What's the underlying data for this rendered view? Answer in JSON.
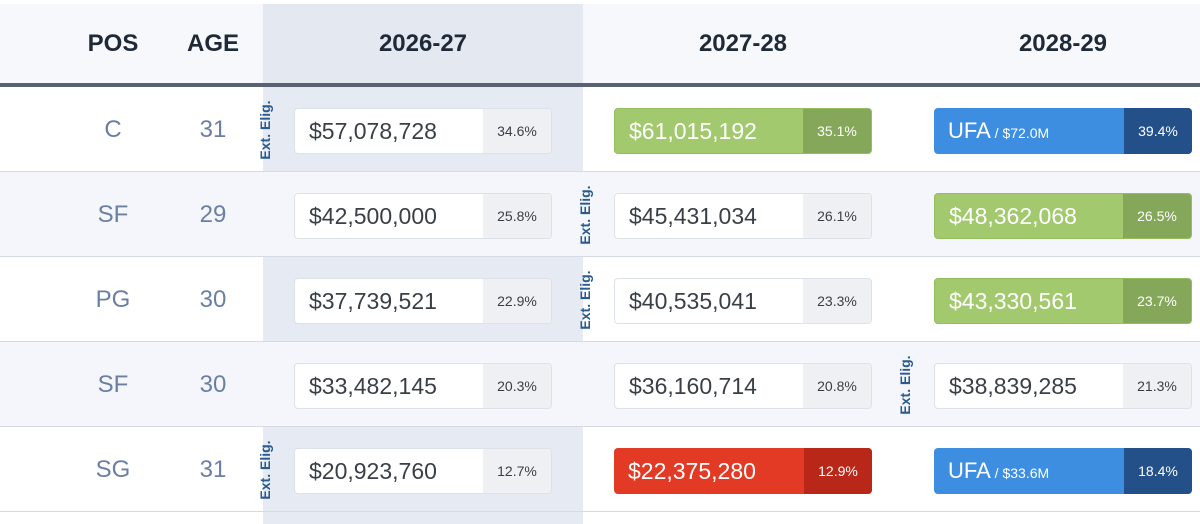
{
  "header": {
    "pos": "POS",
    "age": "AGE",
    "seasons": [
      "2026-27",
      "2027-28",
      "2028-29"
    ]
  },
  "ext_label": "Ext. Elig.",
  "rows": [
    {
      "pos": "C",
      "age": "31",
      "cells": [
        {
          "amount": "$57,078,728",
          "pct": "34.6%",
          "style": "plain"
        },
        {
          "amount": "$61,015,192",
          "pct": "35.1%",
          "style": "green"
        },
        {
          "ufa": "UFA",
          "sub": " / $72.0M",
          "pct": "39.4%",
          "style": "blue"
        }
      ]
    },
    {
      "pos": "SF",
      "age": "29",
      "cells": [
        {
          "amount": "$42,500,000",
          "pct": "25.8%",
          "style": "plain"
        },
        {
          "amount": "$45,431,034",
          "pct": "26.1%",
          "style": "plain"
        },
        {
          "amount": "$48,362,068",
          "pct": "26.5%",
          "style": "green"
        }
      ]
    },
    {
      "pos": "PG",
      "age": "30",
      "cells": [
        {
          "amount": "$37,739,521",
          "pct": "22.9%",
          "style": "plain"
        },
        {
          "amount": "$40,535,041",
          "pct": "23.3%",
          "style": "plain"
        },
        {
          "amount": "$43,330,561",
          "pct": "23.7%",
          "style": "green"
        }
      ]
    },
    {
      "pos": "SF",
      "age": "30",
      "cells": [
        {
          "amount": "$33,482,145",
          "pct": "20.3%",
          "style": "plain"
        },
        {
          "amount": "$36,160,714",
          "pct": "20.8%",
          "style": "plain"
        },
        {
          "amount": "$38,839,285",
          "pct": "21.3%",
          "style": "plain"
        }
      ]
    },
    {
      "pos": "SG",
      "age": "31",
      "cells": [
        {
          "amount": "$20,923,760",
          "pct": "12.7%",
          "style": "plain"
        },
        {
          "amount": "$22,375,280",
          "pct": "12.9%",
          "style": "red"
        },
        {
          "ufa": "UFA",
          "sub": " / $33.6M",
          "pct": "18.4%",
          "style": "blue"
        }
      ]
    }
  ],
  "colors": {
    "green": "#a3c96f",
    "red": "#e23a24",
    "blue": "#3d8ee0",
    "highlight_column": "#e6eaf2"
  }
}
